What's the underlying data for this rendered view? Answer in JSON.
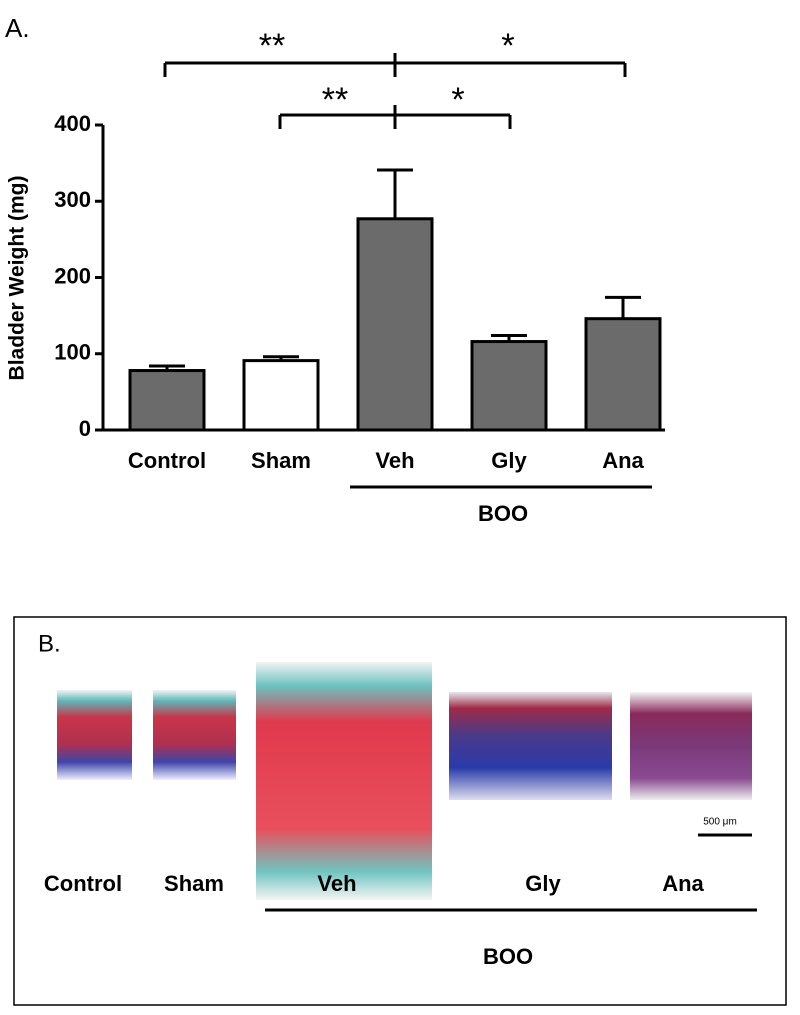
{
  "panel_a_label": "A.",
  "chart_data": {
    "type": "bar",
    "ylabel": "Bladder Weight (mg)",
    "categories": [
      "Control",
      "Sham",
      "Veh",
      "Gly",
      "Ana"
    ],
    "values": [
      78,
      91,
      277,
      116,
      146
    ],
    "errors": [
      6,
      5,
      64,
      8,
      28
    ],
    "colors": [
      "#6b6b6b",
      "#ffffff",
      "#6b6b6b",
      "#6b6b6b",
      "#6b6b6b"
    ],
    "ylim": [
      0,
      400
    ],
    "yticks": [
      0,
      100,
      200,
      300,
      400
    ],
    "group_label": "BOO",
    "significance": [
      "**",
      "*",
      "**",
      "*"
    ]
  },
  "panel_b": {
    "label": "B.",
    "images": [
      "Control",
      "Sham",
      "Veh",
      "Gly",
      "Ana"
    ],
    "group_label": "BOO",
    "scale_bar": "500 μm"
  }
}
